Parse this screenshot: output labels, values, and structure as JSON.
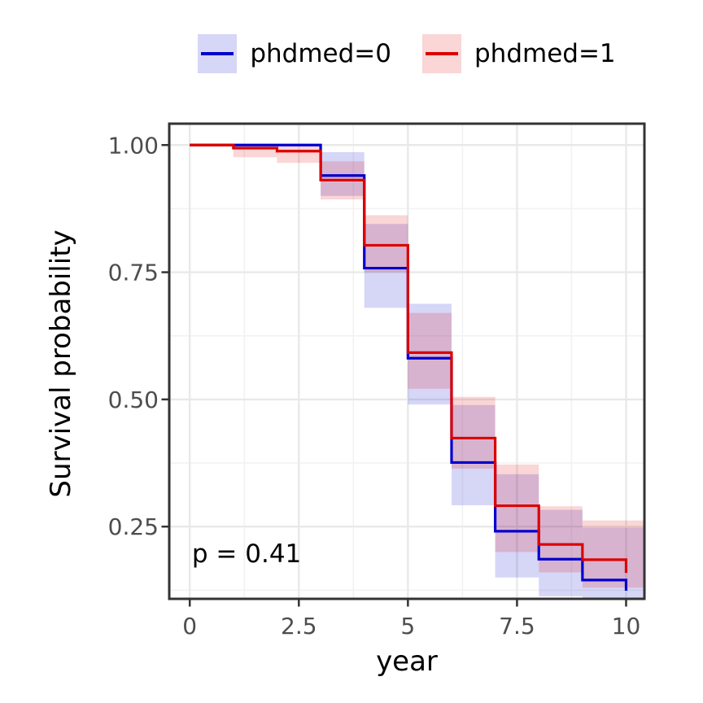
{
  "legend": {
    "band_opacity": 0.16,
    "items": [
      {
        "label": "phdmed=0",
        "color": "#0000CD"
      },
      {
        "label": "phdmed=1",
        "color": "#DD0000"
      }
    ]
  },
  "chart_data": {
    "type": "line",
    "subtype": "kaplan-meier-step-with-confidence-bands",
    "title": "",
    "xlabel": "year",
    "ylabel": "Survival probability",
    "xlim": [
      -0.47,
      10.42
    ],
    "ylim": [
      0.108,
      1.042
    ],
    "grid": true,
    "legend_position": "top",
    "x_ticks": {
      "values": [
        0,
        2.5,
        5,
        7.5,
        10
      ],
      "labels": [
        "0",
        "2.5",
        "5",
        "7.5",
        "10"
      ]
    },
    "y_ticks": {
      "values": [
        0.25,
        0.5,
        0.75,
        1.0
      ],
      "labels": [
        "0.25",
        "0.50",
        "0.75",
        "1.00"
      ]
    },
    "x_minor": [
      1.25,
      3.75,
      6.25,
      8.75
    ],
    "y_minor": [
      0.125,
      0.375,
      0.625,
      0.875
    ],
    "annotation": {
      "text": "p = 0.41",
      "x": 0.05,
      "y": 0.18
    },
    "series": [
      {
        "name": "phdmed=0",
        "color": "#0000CD",
        "steps": [
          [
            0,
            1.0
          ],
          [
            3,
            0.94
          ],
          [
            4,
            0.758
          ],
          [
            5,
            0.581
          ],
          [
            6,
            0.376
          ],
          [
            7,
            0.241
          ],
          [
            8,
            0.186
          ],
          [
            9,
            0.145
          ],
          [
            10,
            0.124
          ]
        ],
        "ci": [
          [
            3,
            4,
            0.9,
            0.986
          ],
          [
            4,
            5,
            0.68,
            0.845
          ],
          [
            5,
            6,
            0.49,
            0.688
          ],
          [
            6,
            7,
            0.292,
            0.489
          ],
          [
            7,
            8,
            0.15,
            0.353
          ],
          [
            8,
            9,
            0.113,
            0.283
          ],
          [
            9,
            10.42,
            0.1,
            0.248
          ]
        ]
      },
      {
        "name": "phdmed=1",
        "color": "#DD0000",
        "steps": [
          [
            0,
            1.0
          ],
          [
            1,
            0.994
          ],
          [
            2,
            0.988
          ],
          [
            3,
            0.931
          ],
          [
            4,
            0.803
          ],
          [
            5,
            0.592
          ],
          [
            6,
            0.424
          ],
          [
            7,
            0.291
          ],
          [
            8,
            0.215
          ],
          [
            9,
            0.185
          ],
          [
            10,
            0.159
          ]
        ],
        "ci": [
          [
            1,
            2,
            0.976,
            1.0
          ],
          [
            2,
            3,
            0.965,
            1.0
          ],
          [
            3,
            4,
            0.893,
            0.968
          ],
          [
            4,
            5,
            0.75,
            0.862
          ],
          [
            5,
            6,
            0.521,
            0.67
          ],
          [
            6,
            7,
            0.364,
            0.505
          ],
          [
            7,
            8,
            0.2,
            0.372
          ],
          [
            8,
            9,
            0.16,
            0.29
          ],
          [
            9,
            10.42,
            0.13,
            0.262
          ]
        ]
      }
    ],
    "axis_colors": {
      "tick_label": "#4D4D4D",
      "axis_title": "#000000",
      "panel_border": "#333333",
      "grid_major": "#E9E9E9",
      "grid_minor": "#F2F2F2"
    }
  }
}
